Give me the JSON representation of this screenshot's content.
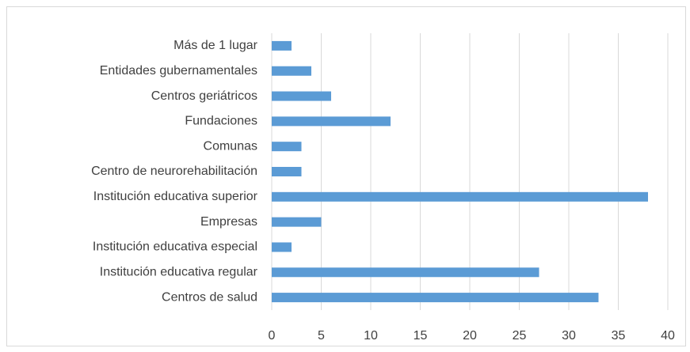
{
  "chart_data": {
    "type": "bar",
    "orientation": "horizontal",
    "categories": [
      "Más de 1 lugar",
      "Entidades gubernamentales",
      "Centros geriátricos",
      "Fundaciones",
      "Comunas",
      "Centro de neurorehabilitación",
      "Institución educativa superior",
      "Empresas",
      "Institución educativa especial",
      "Institución educativa regular",
      "Centros de salud"
    ],
    "values": [
      2,
      4,
      6,
      12,
      3,
      3,
      38,
      5,
      2,
      27,
      33
    ],
    "color": "#5b9bd5",
    "xlim": [
      0,
      40
    ],
    "xticks": [
      0,
      5,
      10,
      15,
      20,
      25,
      30,
      35,
      40
    ],
    "grid": true
  }
}
